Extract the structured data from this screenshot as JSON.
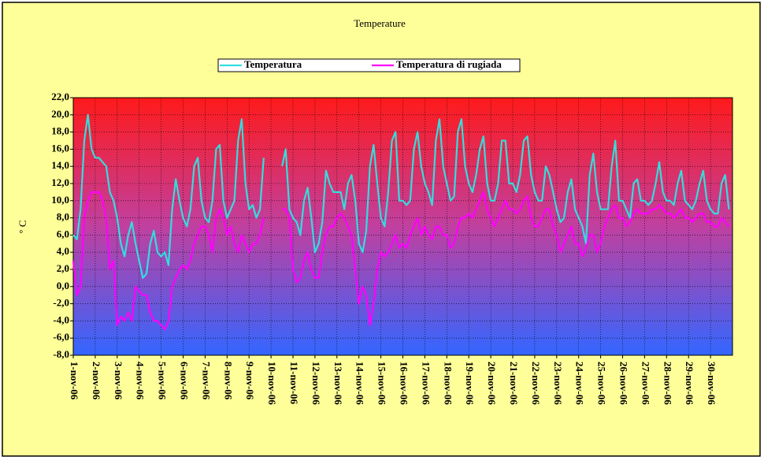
{
  "chart_data": {
    "type": "line",
    "title": "Temperature",
    "y_label": "° C",
    "categories": [
      "1-nov-06",
      null,
      null,
      null,
      null,
      null,
      "2-nov-06",
      null,
      null,
      null,
      null,
      null,
      "3-nov-06",
      null,
      null,
      null,
      null,
      null,
      "4-nov-06",
      null,
      null,
      null,
      null,
      null,
      "5-nov-06",
      null,
      null,
      null,
      null,
      null,
      "6-nov-06",
      null,
      null,
      null,
      null,
      null,
      "7-nov-06",
      null,
      null,
      null,
      null,
      null,
      "8-nov-06",
      null,
      null,
      null,
      null,
      null,
      "9-nov-06",
      null,
      null,
      null,
      null,
      null,
      "10-nov-06",
      null,
      null,
      null,
      null,
      null,
      "11-nov-06",
      null,
      null,
      null,
      null,
      null,
      "12-nov-06",
      null,
      null,
      null,
      null,
      null,
      "13-nov-06",
      null,
      null,
      null,
      null,
      null,
      "14-nov-06",
      null,
      null,
      null,
      null,
      null,
      "15-nov-06",
      null,
      null,
      null,
      null,
      null,
      "16-nov-06",
      null,
      null,
      null,
      null,
      null,
      "17-nov-06",
      null,
      null,
      null,
      null,
      null,
      "18-nov-06",
      null,
      null,
      null,
      null,
      null,
      "19-nov-06",
      null,
      null,
      null,
      null,
      null,
      "20-nov-06",
      null,
      null,
      null,
      null,
      null,
      "21-nov-06",
      null,
      null,
      null,
      null,
      null,
      "22-nov-06",
      null,
      null,
      null,
      null,
      null,
      "23-nov-06",
      null,
      null,
      null,
      null,
      null,
      "24-nov-06",
      null,
      null,
      null,
      null,
      null,
      "25-nov-06",
      null,
      null,
      null,
      null,
      null,
      "26-nov-06",
      null,
      null,
      null,
      null,
      null,
      "27-nov-06",
      null,
      null,
      null,
      null,
      null,
      "28-nov-06",
      null,
      null,
      null,
      null,
      null,
      "29-nov-06",
      null,
      null,
      null,
      null,
      null,
      "30-nov-06",
      null,
      null,
      null,
      null,
      null
    ],
    "series": [
      {
        "name": "Temperatura",
        "color": "#33dddd",
        "values": [
          6,
          5.5,
          9,
          17,
          20,
          16,
          15,
          15,
          14.5,
          14,
          11,
          10,
          8,
          5,
          3.5,
          6,
          7.5,
          5,
          3,
          1,
          1.5,
          5,
          6.5,
          4,
          3.5,
          4,
          2.5,
          9,
          12.5,
          10,
          8,
          7,
          9,
          14,
          15,
          10,
          8,
          7.5,
          10,
          16,
          16.5,
          10,
          8,
          9,
          10,
          17,
          19.5,
          12,
          9,
          9.5,
          8,
          9,
          15,
          null,
          null,
          null,
          null,
          14,
          16,
          9,
          8,
          7.5,
          6,
          10,
          11.5,
          8,
          4,
          5,
          7.5,
          13.5,
          12,
          11,
          11,
          11,
          9,
          12,
          13,
          10,
          5,
          4,
          6.5,
          14,
          16.5,
          12,
          8,
          7,
          11,
          17,
          18,
          10,
          10,
          9.5,
          10,
          16,
          18,
          14,
          12,
          11,
          9.5,
          17,
          19.5,
          14,
          12,
          10,
          10.5,
          18,
          19.5,
          14,
          12,
          11,
          13,
          16,
          17.5,
          12,
          10,
          10,
          12,
          17,
          17,
          12,
          12,
          11,
          13,
          17,
          17.5,
          13,
          11,
          10,
          10,
          14,
          13,
          11,
          9,
          7.5,
          8,
          11,
          12.5,
          9,
          8,
          7,
          5,
          13,
          15.5,
          11,
          9,
          9,
          9,
          14,
          17,
          10,
          10,
          9,
          8,
          12,
          12.5,
          10,
          10,
          9.5,
          10,
          12,
          14.5,
          11,
          10,
          10,
          9.5,
          12,
          13.5,
          10,
          9.5,
          9,
          10,
          12,
          13.5,
          10,
          9,
          8.5,
          8.5,
          12,
          13,
          9
        ]
      },
      {
        "name": "Temperatura di rugiada",
        "color": "#ff00ff",
        "values": [
          3,
          -1,
          0,
          8,
          10,
          11,
          11,
          11,
          10,
          8,
          2,
          3,
          -4.5,
          -3.5,
          -4,
          -3,
          -4,
          0,
          -0.5,
          -1,
          -1,
          -3,
          -4,
          -4,
          -4.5,
          -5,
          -4,
          0,
          1,
          2,
          2.5,
          2,
          3,
          5,
          6,
          7,
          7,
          6,
          4,
          8,
          9,
          8,
          6,
          7,
          5,
          4,
          6,
          5,
          4,
          5,
          5,
          6,
          8,
          null,
          null,
          null,
          null,
          9,
          9,
          8,
          2,
          0.5,
          1,
          3,
          4,
          2,
          1,
          1,
          4,
          6,
          7,
          7,
          8,
          8.5,
          8,
          7,
          6,
          2,
          -2,
          0,
          -1,
          -4.5,
          -2,
          2,
          4,
          3.5,
          4,
          5,
          6,
          4.5,
          5,
          4.5,
          6,
          7,
          8,
          6,
          7,
          6,
          5.5,
          7,
          7,
          6,
          6,
          4.5,
          5,
          7,
          8,
          8,
          8.5,
          8,
          9,
          10,
          11,
          9,
          8,
          7,
          8,
          9,
          10,
          9,
          9,
          8.5,
          9,
          10,
          10.5,
          8,
          7,
          7,
          8,
          9,
          9,
          7,
          6,
          4,
          5,
          6,
          7,
          5,
          5,
          3.5,
          4.5,
          6,
          6,
          4,
          5,
          7,
          8,
          9,
          9.5,
          8,
          8,
          7,
          7.5,
          8.5,
          9,
          8.5,
          8.5,
          8.5,
          9,
          9,
          9.5,
          9,
          8.5,
          8.5,
          8,
          8.5,
          9,
          8,
          8,
          7.5,
          8,
          8.5,
          8.5,
          7.5,
          7.5,
          7,
          7,
          8,
          7.5,
          7
        ]
      }
    ],
    "ylim": [
      -8,
      22
    ],
    "yticks": [
      {
        "value": -8,
        "label": "-8,0"
      },
      {
        "value": -6,
        "label": "-6,0"
      },
      {
        "value": -4,
        "label": "-4,0"
      },
      {
        "value": -2,
        "label": "-2,0"
      },
      {
        "value": 0,
        "label": "0,0"
      },
      {
        "value": 2,
        "label": "2,0"
      },
      {
        "value": 4,
        "label": "4,0"
      },
      {
        "value": 6,
        "label": "6,0"
      },
      {
        "value": 8,
        "label": "8,0"
      },
      {
        "value": 10,
        "label": "10,0"
      },
      {
        "value": 12,
        "label": "12,0"
      },
      {
        "value": 14,
        "label": "14,0"
      },
      {
        "value": 16,
        "label": "16,0"
      },
      {
        "value": 18,
        "label": "18,0"
      },
      {
        "value": 20,
        "label": "20,0"
      },
      {
        "value": 22,
        "label": "22,0"
      }
    ],
    "grid": true,
    "legend": "top"
  }
}
